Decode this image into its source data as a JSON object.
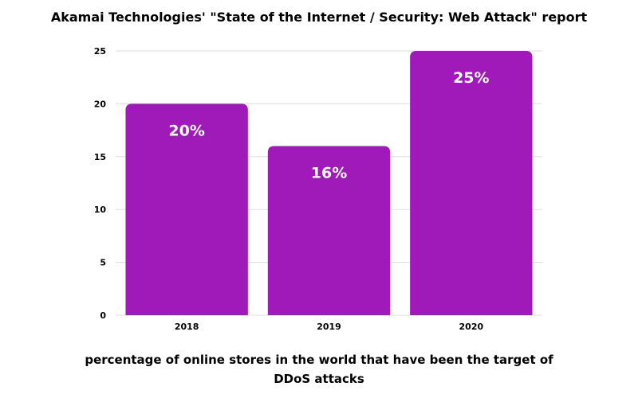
{
  "chart_data": {
    "type": "bar",
    "title": "Akamai Technologies' \"State of the Internet / Security: Web Attack\" report",
    "xlabel": "percentage of online stores in the world that have been the target of DDoS attacks",
    "ylabel": "",
    "categories": [
      "2018",
      "2019",
      "2020"
    ],
    "values": [
      20,
      16,
      25
    ],
    "data_labels": [
      "20%",
      "16%",
      "25%"
    ],
    "yticks": [
      "0",
      "5",
      "10",
      "15",
      "20",
      "25"
    ],
    "ylim": [
      0,
      25
    ],
    "grid": true,
    "legend": "none",
    "bar_color": "#9f1ab8",
    "grid_color": "#dddddd"
  }
}
